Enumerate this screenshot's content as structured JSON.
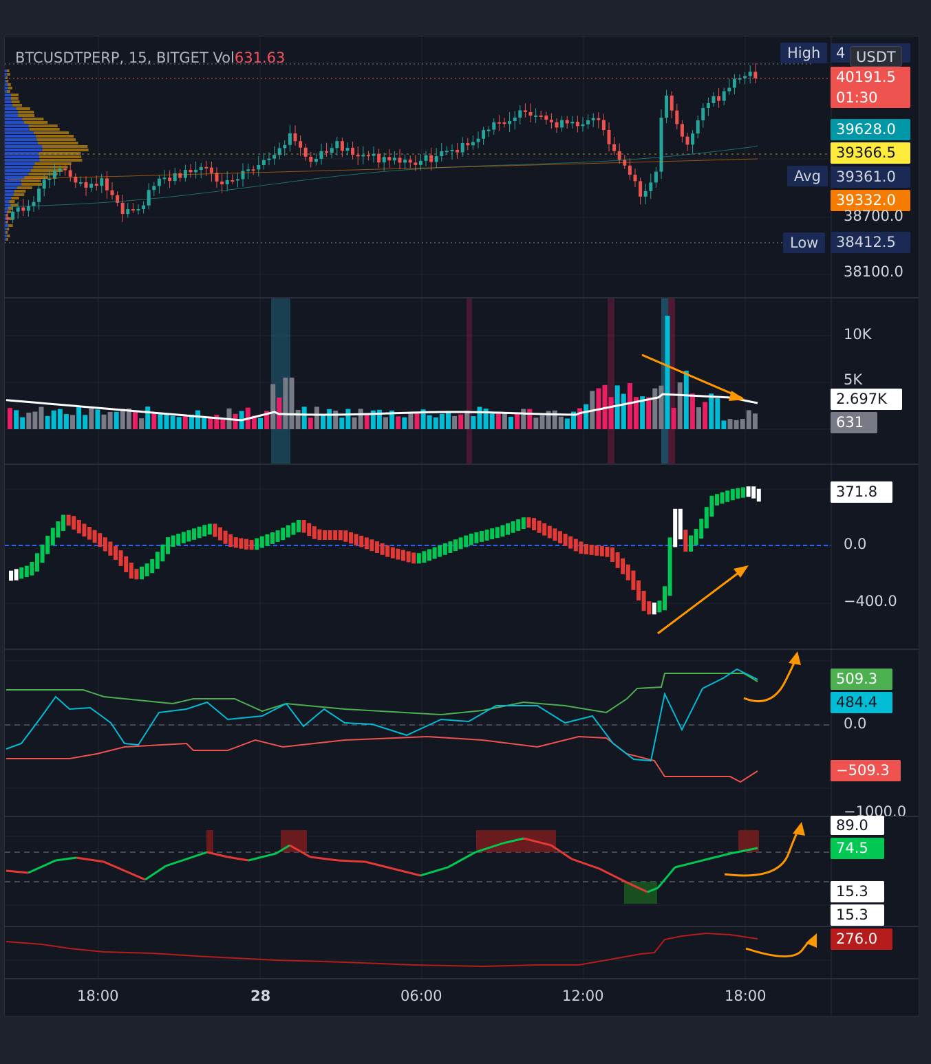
{
  "symbol_line": {
    "text": "BTCUSDTPERP, 15, BITGET  Vol",
    "vol_value": "631.63"
  },
  "price_pane": {
    "currency": "USDT",
    "high_label": "High",
    "high_value_partial": "4",
    "low_label": "Low",
    "avg_label": "Avg",
    "current_price": "40191.5",
    "countdown": "01:30",
    "axis_ticks": [
      "38700.0",
      "38100.0"
    ],
    "price_labels": [
      {
        "value": "39628.0",
        "color": "#0097a7",
        "text_color": "#ffffff"
      },
      {
        "value": "39366.5",
        "color": "#ffeb3b",
        "text_color": "#131722"
      },
      {
        "value": "39361.0",
        "color": "#1b2a55",
        "text_color": "#d1d4dc"
      },
      {
        "value": "39332.0",
        "color": "#f57c00",
        "text_color": "#ffffff"
      }
    ],
    "low_value": "38412.5"
  },
  "volume_pane": {
    "axis_ticks": [
      "10K",
      "5K"
    ],
    "ma_value": "2.697K",
    "volume_value": "631"
  },
  "oscillator_pane": {
    "axis_ticks": [
      "0.0",
      "−400.0"
    ],
    "current_value": "371.8"
  },
  "bands_pane": {
    "axis_ticks": [
      "0.0",
      "−1000.0"
    ],
    "upper": "509.3",
    "middle": "484.4",
    "lower": "−509.3"
  },
  "rsi_pane": {
    "upper": "89.0",
    "value": "74.5",
    "lower_a": "15.3",
    "lower_b": "15.3"
  },
  "bottom_pane": {
    "value": "276.0"
  },
  "time_axis": [
    "18:00",
    "28",
    "06:00",
    "12:00",
    "18:00"
  ],
  "colors": {
    "background": "#131722",
    "up": "#26a69a",
    "down": "#ef5350",
    "volume_cyan": "#00bcd4",
    "volume_pink": "#e91e63",
    "annotation": "#ff9800",
    "osc_green": "#00c853",
    "osc_red": "#e53935"
  }
}
